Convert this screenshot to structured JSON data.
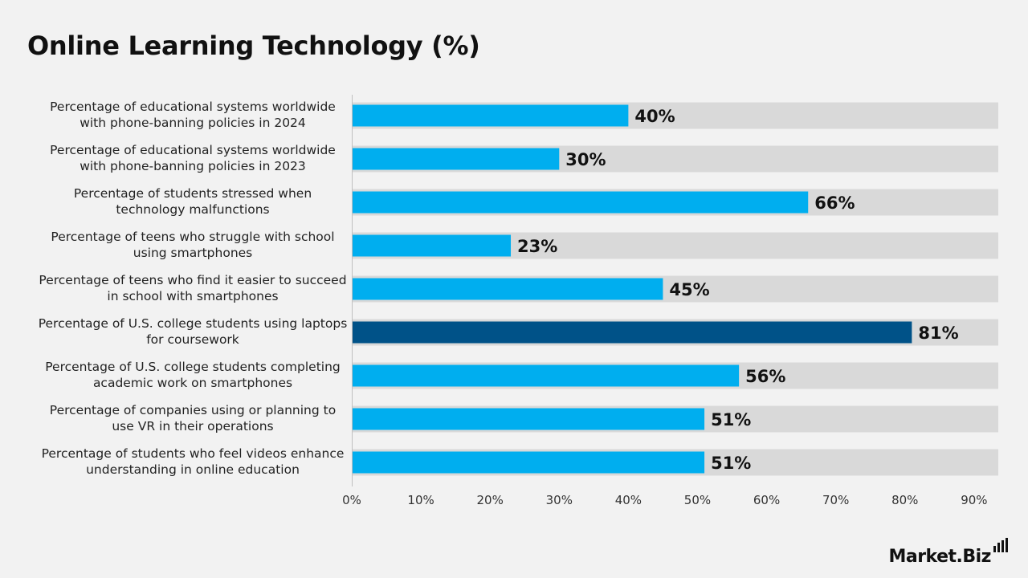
{
  "chart_data": {
    "type": "bar",
    "orientation": "horizontal",
    "title": "Online Learning Technology (%)",
    "categories": [
      [
        "Percentage of educational systems worldwide",
        "with phone-banning policies in 2024"
      ],
      [
        "Percentage of educational systems worldwide",
        "with phone-banning policies in 2023"
      ],
      [
        "Percentage of students stressed when",
        "technology malfunctions"
      ],
      [
        "Percentage of teens who struggle with school",
        "using smartphones"
      ],
      [
        "Percentage of teens who find it easier to succeed",
        "in school with smartphones"
      ],
      [
        "Percentage of U.S. college students using laptops",
        "for coursework"
      ],
      [
        "Percentage of U.S. college students completing",
        "academic work on smartphones"
      ],
      [
        "Percentage of companies using or planning to",
        "use VR in their operations"
      ],
      [
        "Percentage of students who feel videos enhance",
        "understanding in online education"
      ]
    ],
    "values": [
      40,
      30,
      66,
      23,
      45,
      81,
      56,
      51,
      51
    ],
    "data_labels": [
      "40%",
      "30%",
      "66%",
      "23%",
      "45%",
      "81%",
      "56%",
      "51%",
      "51%"
    ],
    "highlight_index": 5,
    "xlim": [
      0,
      93.5
    ],
    "xticks": [
      0,
      10,
      20,
      30,
      40,
      50,
      60,
      70,
      80,
      90
    ],
    "xtick_labels": [
      "0%",
      "10%",
      "20%",
      "30%",
      "40%",
      "50%",
      "60%",
      "70%",
      "80%",
      "90%"
    ],
    "xlabel": "",
    "ylabel": "",
    "grid": false,
    "colors": {
      "bar": "#00aeef",
      "highlight": "#005288",
      "track": "#d9d9d9",
      "background": "#f2f2f2"
    }
  },
  "brand": {
    "text": "Market.Biz"
  }
}
